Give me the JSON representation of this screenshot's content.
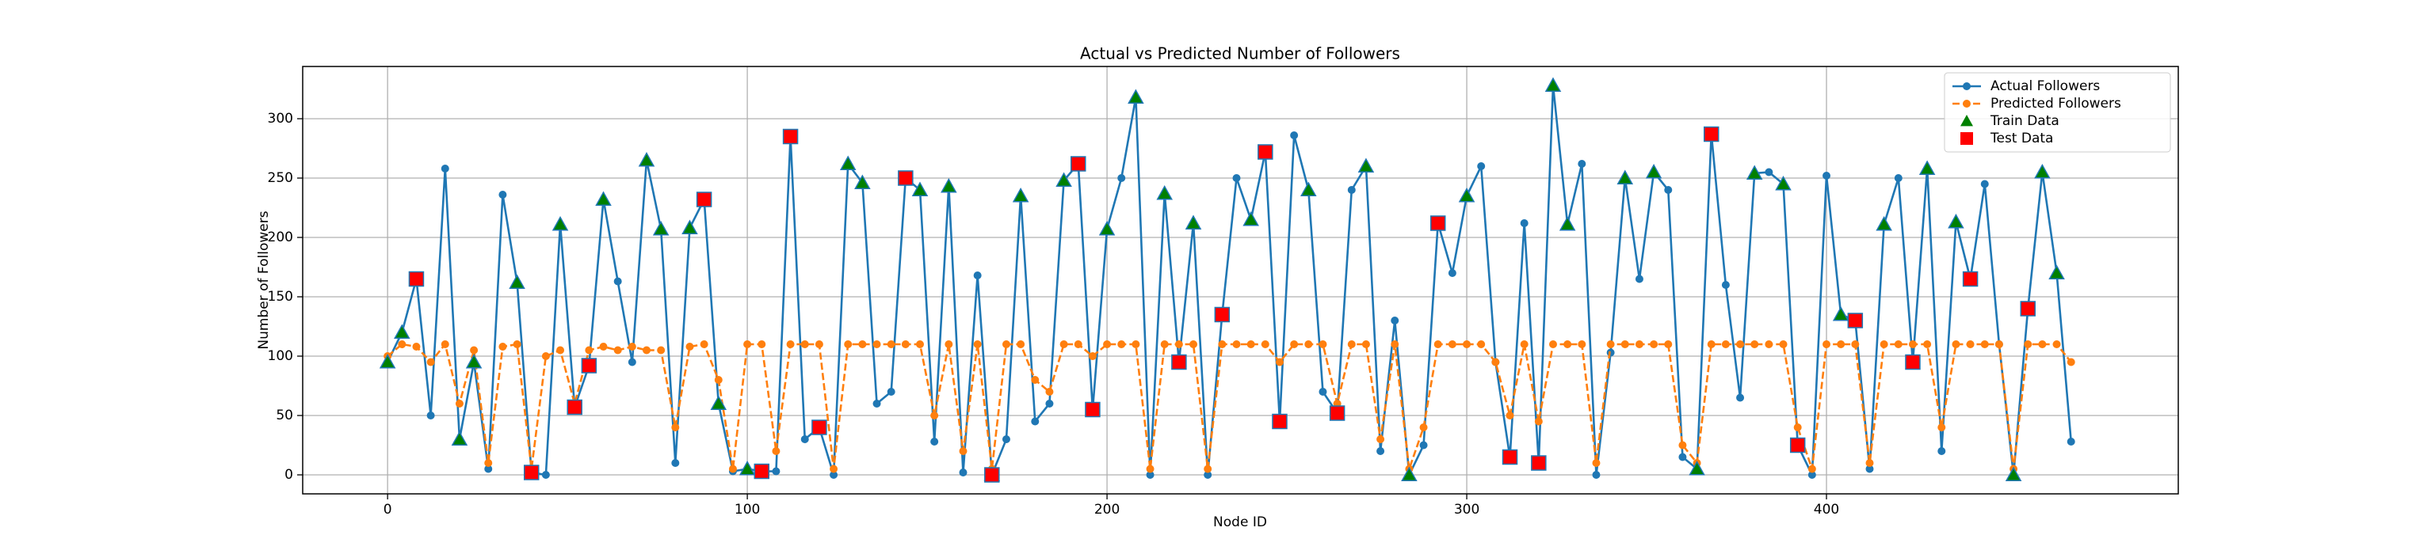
{
  "chart_data": {
    "type": "line",
    "title": "Actual vs Predicted Number of Followers",
    "x_label": "Node ID",
    "y_label": "Number of Followers",
    "x": [
      0,
      4,
      8,
      12,
      16,
      20,
      24,
      28,
      32,
      36,
      40,
      44,
      48,
      52,
      56,
      60,
      64,
      68,
      72,
      76,
      80,
      84,
      88,
      92,
      96,
      100,
      104,
      108,
      112,
      116,
      120,
      124,
      128,
      132,
      136,
      140,
      144,
      148,
      152,
      156,
      160,
      164,
      168,
      172,
      176,
      180,
      184,
      188,
      192,
      196,
      200,
      204,
      208,
      212,
      216,
      220,
      224,
      228,
      232,
      236,
      240,
      244,
      248,
      252,
      256,
      260,
      264,
      268,
      272,
      276,
      280,
      284,
      288,
      292,
      296,
      300,
      304,
      308,
      312,
      316,
      320,
      324,
      328,
      332,
      336,
      340,
      344,
      348,
      352,
      356,
      360,
      364,
      368,
      372,
      376,
      380,
      384,
      388,
      392,
      396,
      400,
      404,
      408,
      412,
      416,
      420,
      424,
      428,
      432,
      436,
      440,
      444,
      448,
      452,
      456,
      460,
      464,
      468
    ],
    "series": [
      {
        "name": "Actual Followers",
        "color": "#1f77b4",
        "style": "solid",
        "marker": "circle",
        "values": [
          95,
          120,
          165,
          50,
          258,
          30,
          95,
          5,
          236,
          162,
          2,
          0,
          211,
          57,
          92,
          232,
          163,
          95,
          265,
          207,
          10,
          208,
          232,
          60,
          3,
          5,
          3,
          3,
          285,
          30,
          40,
          0,
          262,
          246,
          60,
          70,
          250,
          240,
          28,
          243,
          2,
          168,
          0,
          30,
          235,
          45,
          60,
          248,
          262,
          55,
          207,
          250,
          318,
          0,
          237,
          95,
          212,
          0,
          135,
          250,
          215,
          272,
          45,
          286,
          240,
          70,
          52,
          240,
          260,
          20,
          130,
          0,
          25,
          212,
          170,
          235,
          260,
          95,
          15,
          212,
          10,
          328,
          211,
          262,
          0,
          103,
          250,
          165,
          255,
          240,
          15,
          5,
          287,
          160,
          65,
          254,
          255,
          245,
          25,
          0,
          252,
          135,
          130,
          5,
          211,
          250,
          95,
          258,
          20,
          213,
          165,
          245,
          110,
          0,
          140,
          255,
          170,
          28
        ]
      },
      {
        "name": "Predicted Followers",
        "color": "#ff7f0e",
        "style": "dashed",
        "marker": "circle",
        "values": [
          100,
          110,
          108,
          95,
          110,
          60,
          105,
          10,
          108,
          110,
          5,
          100,
          105,
          60,
          105,
          108,
          105,
          108,
          105,
          105,
          40,
          108,
          110,
          80,
          5,
          110,
          110,
          20,
          110,
          110,
          110,
          5,
          110,
          110,
          110,
          110,
          110,
          110,
          50,
          110,
          20,
          110,
          5,
          110,
          110,
          80,
          70,
          110,
          110,
          100,
          110,
          110,
          110,
          5,
          110,
          110,
          110,
          5,
          110,
          110,
          110,
          110,
          95,
          110,
          110,
          110,
          60,
          110,
          110,
          30,
          110,
          5,
          40,
          110,
          110,
          110,
          110,
          95,
          50,
          110,
          45,
          110,
          110,
          110,
          10,
          110,
          110,
          110,
          110,
          110,
          25,
          10,
          110,
          110,
          110,
          110,
          110,
          110,
          40,
          5,
          110,
          110,
          110,
          10,
          110,
          110,
          110,
          110,
          40,
          110,
          110,
          110,
          110,
          5,
          110,
          110,
          110,
          95
        ]
      },
      {
        "name": "Train Data",
        "color": "#008000",
        "edgecolor": "#1f77b4",
        "marker": "triangle",
        "x": [
          0,
          4,
          20,
          24,
          36,
          48,
          60,
          72,
          76,
          84,
          92,
          100,
          128,
          132,
          148,
          156,
          168,
          176,
          188,
          200,
          208,
          216,
          224,
          240,
          256,
          272,
          284,
          300,
          324,
          328,
          344,
          352,
          364,
          380,
          388,
          404,
          416,
          428,
          436,
          452,
          460,
          464
        ],
        "values": [
          95,
          120,
          30,
          95,
          162,
          211,
          232,
          265,
          207,
          208,
          60,
          5,
          262,
          246,
          240,
          243,
          0,
          235,
          248,
          207,
          318,
          237,
          212,
          215,
          240,
          260,
          0,
          235,
          328,
          211,
          250,
          255,
          5,
          254,
          245,
          135,
          211,
          258,
          213,
          0,
          255,
          170
        ]
      },
      {
        "name": "Test Data",
        "color": "#ff0000",
        "edgecolor": "#1f77b4",
        "marker": "square",
        "x": [
          8,
          40,
          52,
          56,
          88,
          104,
          112,
          120,
          144,
          168,
          192,
          196,
          220,
          232,
          244,
          248,
          264,
          292,
          312,
          320,
          368,
          392,
          408,
          424,
          440,
          456
        ],
        "values": [
          165,
          2,
          57,
          92,
          232,
          3,
          285,
          40,
          250,
          0,
          262,
          55,
          95,
          135,
          272,
          45,
          52,
          212,
          15,
          10,
          287,
          25,
          130,
          95,
          165,
          140
        ]
      }
    ],
    "xlim": [
      -23.6,
      497.8
    ],
    "ylim": [
      -16,
      344
    ],
    "xticks": [
      0,
      100,
      200,
      300,
      400
    ],
    "yticks": [
      0,
      50,
      100,
      150,
      200,
      250,
      300
    ],
    "grid": true,
    "legend": "upper right"
  }
}
